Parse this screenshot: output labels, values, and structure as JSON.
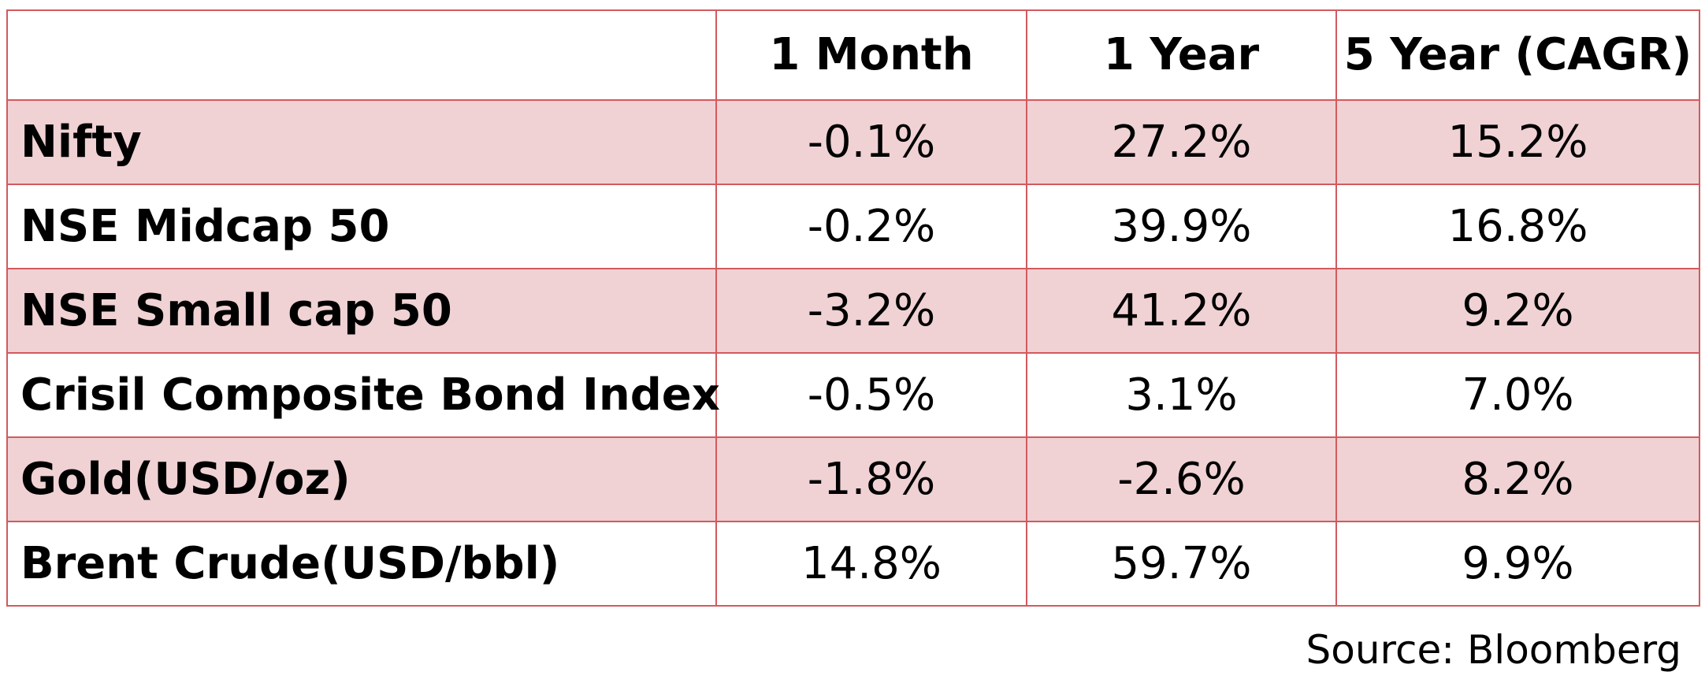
{
  "table": {
    "headers": [
      "",
      "1 Month",
      "1 Year",
      "5 Year (CAGR)"
    ],
    "rows": [
      {
        "name": "Nifty",
        "m1": "-0.1%",
        "y1": "27.2%",
        "y5": "15.2%"
      },
      {
        "name": "NSE Midcap 50",
        "m1": "-0.2%",
        "y1": "39.9%",
        "y5": "16.8%"
      },
      {
        "name": "NSE Small cap 50",
        "m1": "-3.2%",
        "y1": "41.2%",
        "y5": "9.2%"
      },
      {
        "name": "Crisil Composite Bond Index",
        "m1": "-0.5%",
        "y1": "3.1%",
        "y5": "7.0%"
      },
      {
        "name": "Gold(USD/oz)",
        "m1": "-1.8%",
        "y1": "-2.6%",
        "y5": "8.2%"
      },
      {
        "name": "Brent Crude(USD/bbl)",
        "m1": "14.8%",
        "y1": "59.7%",
        "y5": "9.9%"
      }
    ]
  },
  "footer": {
    "source": "Source: Bloomberg"
  },
  "colors": {
    "border": "#d25a5e",
    "shaded_row": "#f0d2d4",
    "plain_row": "#ffffff"
  }
}
